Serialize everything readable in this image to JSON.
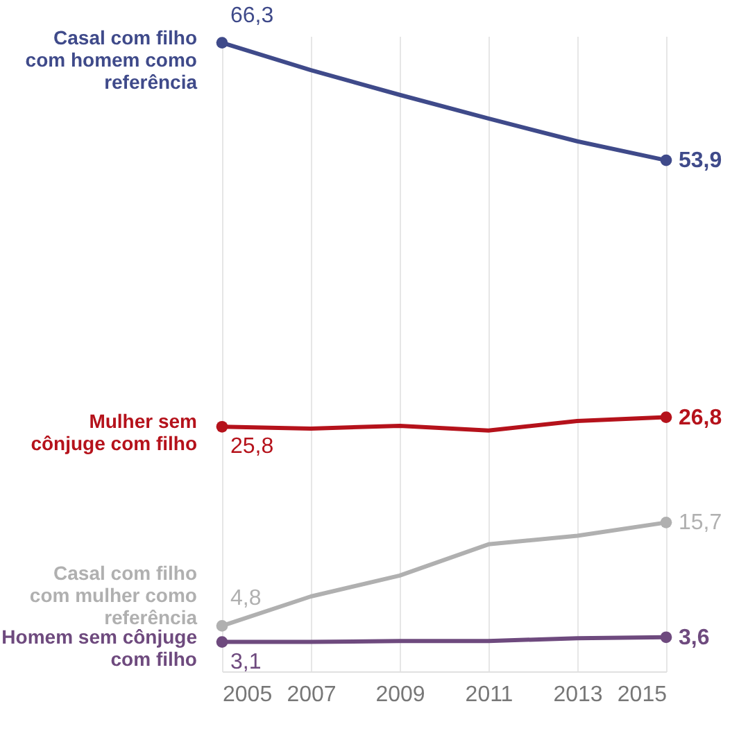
{
  "chart_data": {
    "type": "line",
    "x": [
      2005,
      2007,
      2009,
      2011,
      2013,
      2015
    ],
    "xlim": [
      2005,
      2015
    ],
    "xticks": [
      2005,
      2007,
      2009,
      2011,
      2013,
      2015
    ],
    "ylim": [
      0,
      67
    ],
    "tick_labels": "x",
    "grid": "x",
    "line_style": "solid",
    "series": [
      {
        "name": "Casal com filho com homem como referência",
        "color": "#3f4a8a",
        "values": [
          66.3,
          63.4,
          60.8,
          58.3,
          55.9,
          53.9
        ],
        "value_labels": [
          "66,3",
          null,
          null,
          null,
          null,
          "53,9"
        ]
      },
      {
        "name": "Mulher sem cônjuge com filho",
        "color": "#b5121b",
        "values": [
          25.8,
          25.6,
          25.9,
          25.4,
          26.4,
          26.8
        ],
        "value_labels": [
          "25,8",
          null,
          null,
          null,
          null,
          "26,8"
        ]
      },
      {
        "name": "Casal com filho com mulher como referência",
        "color": "#b0b0b0",
        "values": [
          4.8,
          7.9,
          10.1,
          13.4,
          14.3,
          15.7
        ],
        "value_labels": [
          "4,8",
          null,
          null,
          null,
          null,
          "15,7"
        ]
      },
      {
        "name": "Homem sem cônjuge com filho",
        "color": "#6e4a7e",
        "values": [
          3.1,
          3.1,
          3.2,
          3.2,
          3.5,
          3.6
        ],
        "value_labels": [
          "3,1",
          null,
          null,
          null,
          null,
          "3,6"
        ]
      }
    ]
  }
}
